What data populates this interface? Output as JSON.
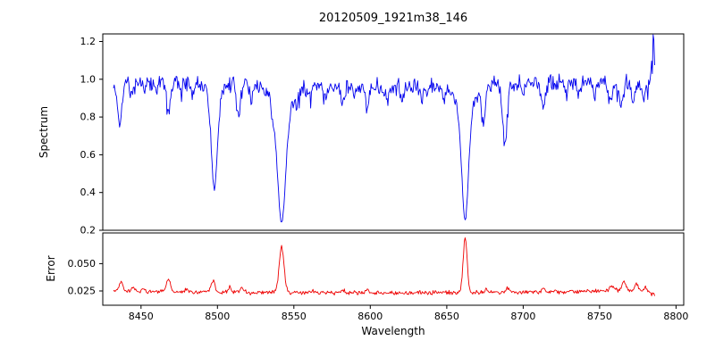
{
  "chart_data": {
    "type": "line",
    "title": "20120509_1921m38_146",
    "xlabel": "Wavelength",
    "grid": false,
    "legend": "none",
    "xlim": [
      8425,
      8805
    ],
    "xticks": [
      {
        "v": 8450,
        "label": "8450"
      },
      {
        "v": 8500,
        "label": "8500"
      },
      {
        "v": 8550,
        "label": "8550"
      },
      {
        "v": 8600,
        "label": "8600"
      },
      {
        "v": 8650,
        "label": "8650"
      },
      {
        "v": 8700,
        "label": "8700"
      },
      {
        "v": 8750,
        "label": "8750"
      },
      {
        "v": 8800,
        "label": "8800"
      }
    ],
    "panels": [
      {
        "name": "spectrum",
        "ylabel": "Spectrum",
        "color": "#0000ee",
        "ylim": [
          0.2,
          1.24
        ],
        "yticks": [
          {
            "v": 0.2,
            "label": "0.2"
          },
          {
            "v": 0.4,
            "label": "0.4"
          },
          {
            "v": 0.6,
            "label": "0.6"
          },
          {
            "v": 0.8,
            "label": "0.8"
          },
          {
            "v": 1.0,
            "label": "1.0"
          },
          {
            "v": 1.2,
            "label": "1.2"
          }
        ],
        "x_start": 8432,
        "x_end": 8786,
        "x_step": 0.5,
        "continuum": 0.97,
        "continuum_wiggle": {
          "amplitude": 0.012,
          "period": 270,
          "phase_x": 8400
        },
        "noise_amplitude": 0.021,
        "downspike_prob": 0.02,
        "downspike_max": 0.09,
        "seed": 20120509,
        "absorption_lines": [
          [
            8436,
            0.22,
            1.3
          ],
          [
            8444,
            0.07,
            1.0
          ],
          [
            8452,
            0.06,
            1.0
          ],
          [
            8460,
            0.06,
            0.9
          ],
          [
            8468,
            0.16,
            1.3
          ],
          [
            8476,
            0.05,
            0.9
          ],
          [
            8484,
            0.06,
            0.9
          ],
          [
            8498,
            0.5,
            1.9
          ],
          [
            8498,
            0.06,
            5.0
          ],
          [
            8514,
            0.17,
            1.2
          ],
          [
            8522,
            0.09,
            1.0
          ],
          [
            8536,
            0.05,
            1.0
          ],
          [
            8542,
            0.6,
            2.6
          ],
          [
            8542,
            0.13,
            7.0
          ],
          [
            8552,
            0.05,
            1.0
          ],
          [
            8560,
            0.05,
            1.0
          ],
          [
            8571,
            0.04,
            1.0
          ],
          [
            8582,
            0.09,
            1.1
          ],
          [
            8590,
            0.05,
            1.0
          ],
          [
            8598,
            0.11,
            1.1
          ],
          [
            8611,
            0.06,
            1.0
          ],
          [
            8621,
            0.07,
            1.0
          ],
          [
            8634,
            0.05,
            1.0
          ],
          [
            8648,
            0.06,
            1.0
          ],
          [
            8662,
            0.6,
            2.2
          ],
          [
            8662,
            0.12,
            6.0
          ],
          [
            8674,
            0.2,
            1.3
          ],
          [
            8688,
            0.32,
            1.5
          ],
          [
            8700,
            0.05,
            1.0
          ],
          [
            8713,
            0.13,
            1.2
          ],
          [
            8728,
            0.06,
            1.0
          ],
          [
            8736,
            0.08,
            1.0
          ],
          [
            8747,
            0.07,
            1.0
          ],
          [
            8757,
            0.1,
            1.1
          ],
          [
            8764,
            0.13,
            1.2
          ],
          [
            8772,
            0.11,
            1.1
          ],
          [
            8779,
            0.09,
            1.0
          ]
        ],
        "emission_spike": [
          8785,
          0.23,
          0.8
        ],
        "notable_features": {
          "ca_ii_triplet_centers": [
            8498,
            8542,
            8662
          ],
          "line_core_depths": [
            0.44,
            0.23,
            0.25
          ],
          "continuum_level": 0.97
        }
      },
      {
        "name": "error",
        "ylabel": "Error",
        "color": "#ee0000",
        "ylim": [
          0.012,
          0.078
        ],
        "yticks": [
          {
            "v": 0.025,
            "label": "0.025"
          },
          {
            "v": 0.05,
            "label": "0.050"
          }
        ],
        "x_start": 8432,
        "x_end": 8786,
        "x_step": 0.5,
        "baseline": 0.0233,
        "curvature_center": 8600,
        "curvature": 6.2e-08,
        "noise_amplitude": 0.0009,
        "end_drop_start": 8780,
        "end_drop_rate": 0.0007,
        "seed": 1921,
        "peaks": [
          [
            8437,
            0.009,
            1.2
          ],
          [
            8445,
            0.004,
            1.0
          ],
          [
            8452,
            0.003,
            1.0
          ],
          [
            8468,
            0.011,
            1.3
          ],
          [
            8480,
            0.003,
            1.0
          ],
          [
            8497,
            0.011,
            1.3
          ],
          [
            8508,
            0.004,
            1.0
          ],
          [
            8516,
            0.003,
            1.0
          ],
          [
            8542,
            0.042,
            1.6
          ],
          [
            8562,
            0.002,
            1.0
          ],
          [
            8582,
            0.003,
            1.0
          ],
          [
            8598,
            0.003,
            1.0
          ],
          [
            8662,
            0.05,
            1.3
          ],
          [
            8676,
            0.003,
            1.0
          ],
          [
            8690,
            0.004,
            1.2
          ],
          [
            8713,
            0.003,
            1.0
          ],
          [
            8758,
            0.005,
            1.5
          ],
          [
            8766,
            0.008,
            1.4
          ],
          [
            8774,
            0.006,
            1.2
          ],
          [
            8780,
            0.004,
            1.0
          ]
        ]
      }
    ]
  }
}
